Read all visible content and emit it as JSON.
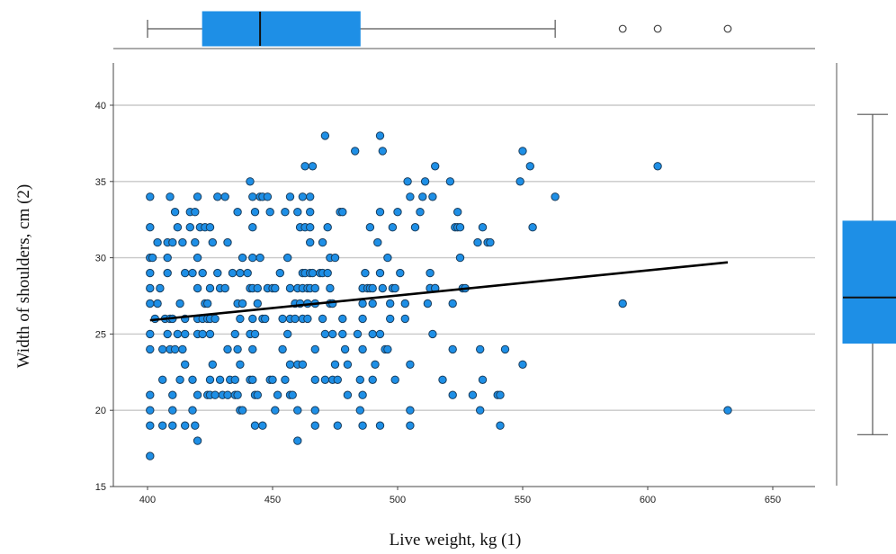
{
  "chart_data": {
    "type": "scatter",
    "title": "",
    "xlabel": "Live weight, kg (1)",
    "ylabel": "Width of shoulders, cm (2)",
    "xlim": [
      385,
      665
    ],
    "ylim": [
      15,
      43
    ],
    "x_ticks": [
      400,
      450,
      500,
      550,
      600,
      650
    ],
    "y_ticks": [
      15,
      20,
      25,
      30,
      35,
      40
    ],
    "grid": "horizontal",
    "colors": {
      "point": "#1e8fe6",
      "point_edge": "#1a3d5c",
      "box": "#1e8fe6",
      "fit_line": "#000000",
      "grid": "#c8c8c8"
    },
    "fit_line": {
      "x": [
        401,
        632
      ],
      "y": [
        25.9,
        29.7
      ]
    },
    "marginal_box_x": {
      "whisker_low": 400,
      "q1": 422,
      "median": 445,
      "q3": 485,
      "whisker_high": 563,
      "outliers": [
        590,
        604,
        632
      ]
    },
    "marginal_box_y": {
      "whisker_low": 18.4,
      "q1": 24.4,
      "median": 27.4,
      "q3": 32.4,
      "whisker_high": 39.4,
      "outliers": []
    },
    "points": [
      [
        401,
        34
      ],
      [
        401,
        32
      ],
      [
        401,
        30
      ],
      [
        402,
        30
      ],
      [
        401,
        29
      ],
      [
        401,
        28
      ],
      [
        401,
        27
      ],
      [
        401,
        25
      ],
      [
        401,
        24
      ],
      [
        401,
        21
      ],
      [
        401,
        20
      ],
      [
        401,
        19
      ],
      [
        401,
        17
      ],
      [
        403,
        26
      ],
      [
        404,
        31
      ],
      [
        404,
        27
      ],
      [
        405,
        28
      ],
      [
        406,
        24
      ],
      [
        406,
        22
      ],
      [
        406,
        19
      ],
      [
        407,
        26
      ],
      [
        408,
        31
      ],
      [
        408,
        30
      ],
      [
        408,
        29
      ],
      [
        408,
        25
      ],
      [
        409,
        34
      ],
      [
        409,
        26
      ],
      [
        409,
        24
      ],
      [
        410,
        31
      ],
      [
        410,
        26
      ],
      [
        410,
        21
      ],
      [
        410,
        20
      ],
      [
        410,
        19
      ],
      [
        411,
        24
      ],
      [
        411,
        33
      ],
      [
        412,
        32
      ],
      [
        412,
        25
      ],
      [
        413,
        27
      ],
      [
        413,
        22
      ],
      [
        414,
        31
      ],
      [
        414,
        24
      ],
      [
        415,
        29
      ],
      [
        415,
        26
      ],
      [
        415,
        25
      ],
      [
        415,
        23
      ],
      [
        415,
        19
      ],
      [
        417,
        33
      ],
      [
        417,
        32
      ],
      [
        418,
        29
      ],
      [
        418,
        22
      ],
      [
        418,
        20
      ],
      [
        419,
        31
      ],
      [
        419,
        19
      ],
      [
        419,
        33
      ],
      [
        420,
        26
      ],
      [
        420,
        34
      ],
      [
        420,
        30
      ],
      [
        420,
        28
      ],
      [
        420,
        25
      ],
      [
        420,
        21
      ],
      [
        420,
        18
      ],
      [
        421,
        32
      ],
      [
        422,
        29
      ],
      [
        422,
        26
      ],
      [
        422,
        25
      ],
      [
        423,
        32
      ],
      [
        423,
        27
      ],
      [
        424,
        27
      ],
      [
        424,
        26
      ],
      [
        424,
        21
      ],
      [
        425,
        32
      ],
      [
        425,
        28
      ],
      [
        425,
        26
      ],
      [
        425,
        25
      ],
      [
        425,
        22
      ],
      [
        425,
        21
      ],
      [
        426,
        31
      ],
      [
        426,
        23
      ],
      [
        427,
        21
      ],
      [
        427,
        26
      ],
      [
        428,
        34
      ],
      [
        428,
        29
      ],
      [
        429,
        28
      ],
      [
        429,
        22
      ],
      [
        430,
        21
      ],
      [
        431,
        34
      ],
      [
        431,
        28
      ],
      [
        432,
        31
      ],
      [
        432,
        24
      ],
      [
        432,
        21
      ],
      [
        433,
        22
      ],
      [
        434,
        29
      ],
      [
        435,
        25
      ],
      [
        435,
        22
      ],
      [
        435,
        21
      ],
      [
        436,
        33
      ],
      [
        436,
        27
      ],
      [
        436,
        24
      ],
      [
        436,
        21
      ],
      [
        437,
        29
      ],
      [
        437,
        26
      ],
      [
        437,
        23
      ],
      [
        437,
        20
      ],
      [
        438,
        30
      ],
      [
        438,
        27
      ],
      [
        438,
        20
      ],
      [
        440,
        29
      ],
      [
        441,
        35
      ],
      [
        441,
        28
      ],
      [
        441,
        25
      ],
      [
        441,
        22
      ],
      [
        442,
        34
      ],
      [
        442,
        32
      ],
      [
        442,
        30
      ],
      [
        442,
        28
      ],
      [
        442,
        26
      ],
      [
        442,
        24
      ],
      [
        442,
        22
      ],
      [
        443,
        33
      ],
      [
        443,
        25
      ],
      [
        443,
        21
      ],
      [
        443,
        19
      ],
      [
        444,
        28
      ],
      [
        444,
        27
      ],
      [
        444,
        21
      ],
      [
        445,
        34
      ],
      [
        445,
        30
      ],
      [
        446,
        34
      ],
      [
        446,
        26
      ],
      [
        446,
        19
      ],
      [
        447,
        26
      ],
      [
        448,
        34
      ],
      [
        448,
        28
      ],
      [
        449,
        33
      ],
      [
        449,
        22
      ],
      [
        450,
        22
      ],
      [
        450,
        28
      ],
      [
        451,
        28
      ],
      [
        451,
        20
      ],
      [
        452,
        21
      ],
      [
        453,
        29
      ],
      [
        454,
        26
      ],
      [
        454,
        24
      ],
      [
        455,
        33
      ],
      [
        455,
        22
      ],
      [
        456,
        30
      ],
      [
        456,
        25
      ],
      [
        457,
        34
      ],
      [
        457,
        28
      ],
      [
        457,
        26
      ],
      [
        457,
        23
      ],
      [
        457,
        21
      ],
      [
        458,
        21
      ],
      [
        459,
        27
      ],
      [
        459,
        26
      ],
      [
        460,
        33
      ],
      [
        460,
        28
      ],
      [
        460,
        23
      ],
      [
        460,
        20
      ],
      [
        460,
        18
      ],
      [
        461,
        32
      ],
      [
        461,
        27
      ],
      [
        462,
        34
      ],
      [
        462,
        29
      ],
      [
        462,
        28
      ],
      [
        462,
        26
      ],
      [
        462,
        23
      ],
      [
        463,
        36
      ],
      [
        463,
        32
      ],
      [
        463,
        29
      ],
      [
        464,
        28
      ],
      [
        464,
        27
      ],
      [
        464,
        26
      ],
      [
        465,
        34
      ],
      [
        465,
        33
      ],
      [
        465,
        32
      ],
      [
        465,
        31
      ],
      [
        465,
        29
      ],
      [
        465,
        28
      ],
      [
        466,
        36
      ],
      [
        466,
        29
      ],
      [
        467,
        28
      ],
      [
        467,
        27
      ],
      [
        467,
        24
      ],
      [
        467,
        22
      ],
      [
        467,
        20
      ],
      [
        467,
        19
      ],
      [
        469,
        29
      ],
      [
        470,
        31
      ],
      [
        470,
        29
      ],
      [
        470,
        26
      ],
      [
        471,
        38
      ],
      [
        471,
        25
      ],
      [
        471,
        22
      ],
      [
        472,
        32
      ],
      [
        472,
        29
      ],
      [
        473,
        30
      ],
      [
        473,
        28
      ],
      [
        473,
        27
      ],
      [
        474,
        27
      ],
      [
        474,
        25
      ],
      [
        474,
        22
      ],
      [
        475,
        30
      ],
      [
        475,
        23
      ],
      [
        476,
        22
      ],
      [
        476,
        19
      ],
      [
        477,
        33
      ],
      [
        478,
        33
      ],
      [
        478,
        26
      ],
      [
        478,
        25
      ],
      [
        479,
        24
      ],
      [
        480,
        23
      ],
      [
        480,
        21
      ],
      [
        483,
        37
      ],
      [
        484,
        25
      ],
      [
        485,
        22
      ],
      [
        485,
        20
      ],
      [
        486,
        28
      ],
      [
        486,
        27
      ],
      [
        486,
        26
      ],
      [
        486,
        24
      ],
      [
        486,
        21
      ],
      [
        486,
        19
      ],
      [
        487,
        29
      ],
      [
        488,
        28
      ],
      [
        489,
        32
      ],
      [
        489,
        28
      ],
      [
        490,
        28
      ],
      [
        490,
        27
      ],
      [
        490,
        25
      ],
      [
        490,
        22
      ],
      [
        491,
        23
      ],
      [
        492,
        31
      ],
      [
        493,
        38
      ],
      [
        493,
        33
      ],
      [
        493,
        29
      ],
      [
        493,
        25
      ],
      [
        493,
        19
      ],
      [
        494,
        37
      ],
      [
        494,
        28
      ],
      [
        495,
        24
      ],
      [
        496,
        30
      ],
      [
        496,
        24
      ],
      [
        497,
        27
      ],
      [
        497,
        26
      ],
      [
        498,
        32
      ],
      [
        498,
        28
      ],
      [
        499,
        28
      ],
      [
        499,
        22
      ],
      [
        500,
        33
      ],
      [
        501,
        29
      ],
      [
        503,
        27
      ],
      [
        503,
        26
      ],
      [
        504,
        35
      ],
      [
        505,
        34
      ],
      [
        505,
        23
      ],
      [
        505,
        20
      ],
      [
        505,
        19
      ],
      [
        507,
        32
      ],
      [
        509,
        33
      ],
      [
        510,
        34
      ],
      [
        511,
        35
      ],
      [
        512,
        27
      ],
      [
        513,
        29
      ],
      [
        513,
        28
      ],
      [
        513,
        28
      ],
      [
        514,
        34
      ],
      [
        514,
        25
      ],
      [
        515,
        36
      ],
      [
        515,
        28
      ],
      [
        515,
        28
      ],
      [
        518,
        22
      ],
      [
        521,
        35
      ],
      [
        522,
        24
      ],
      [
        522,
        21
      ],
      [
        522,
        27
      ],
      [
        523,
        32
      ],
      [
        524,
        33
      ],
      [
        524,
        32
      ],
      [
        525,
        32
      ],
      [
        525,
        30
      ],
      [
        526,
        28
      ],
      [
        527,
        28
      ],
      [
        530,
        21
      ],
      [
        532,
        31
      ],
      [
        533,
        20
      ],
      [
        533,
        24
      ],
      [
        534,
        32
      ],
      [
        534,
        22
      ],
      [
        536,
        31
      ],
      [
        537,
        31
      ],
      [
        540,
        21
      ],
      [
        541,
        21
      ],
      [
        541,
        19
      ],
      [
        543,
        24
      ],
      [
        549,
        35
      ],
      [
        550,
        37
      ],
      [
        550,
        23
      ],
      [
        553,
        36
      ],
      [
        554,
        32
      ],
      [
        563,
        34
      ],
      [
        590,
        27
      ],
      [
        604,
        36
      ],
      [
        632,
        20
      ]
    ]
  }
}
